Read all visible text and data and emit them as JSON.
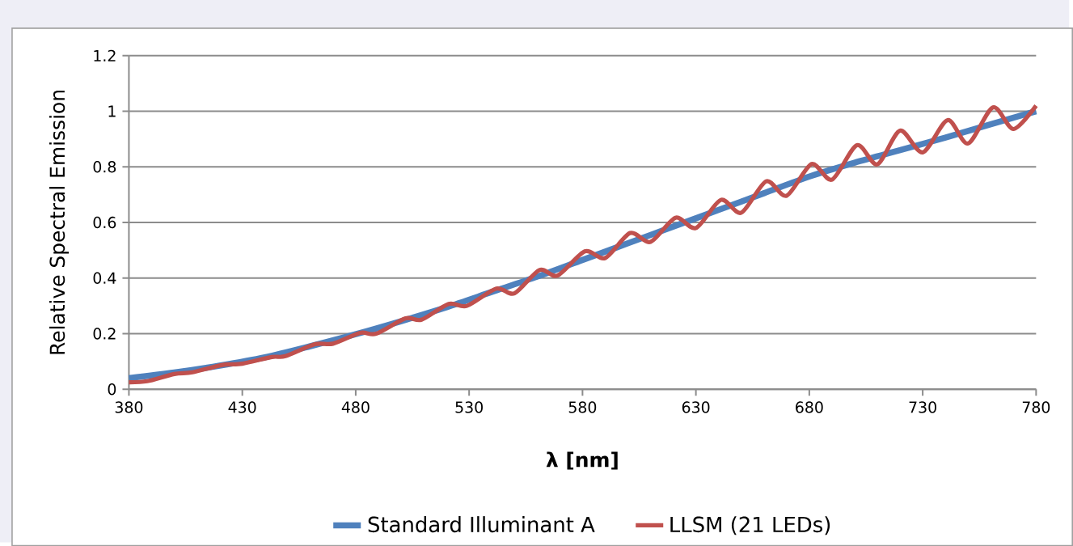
{
  "chart_data": {
    "type": "line",
    "xlabel": "λ [nm]",
    "ylabel": "Relative Spectral Emission",
    "xlim": [
      380,
      780
    ],
    "ylim": [
      0,
      1.2
    ],
    "xticks": [
      380,
      430,
      480,
      530,
      580,
      630,
      680,
      730,
      780
    ],
    "yticks": [
      0,
      0.2,
      0.4,
      0.6,
      0.8,
      1,
      1.2
    ],
    "grid": "y",
    "legend": "bottom",
    "series": [
      {
        "name": "Standard Illuminant A",
        "color": "#4f81bd",
        "x": [
          380,
          400,
          420,
          440,
          460,
          480,
          500,
          520,
          540,
          560,
          580,
          600,
          620,
          640,
          660,
          680,
          700,
          720,
          740,
          760,
          780
        ],
        "values": [
          0.04,
          0.06,
          0.085,
          0.115,
          0.155,
          0.198,
          0.245,
          0.295,
          0.35,
          0.405,
          0.465,
          0.525,
          0.585,
          0.645,
          0.705,
          0.765,
          0.815,
          0.86,
          0.905,
          0.953,
          1.0
        ]
      },
      {
        "name": "LLSM (21 LEDs)",
        "color": "#c0504d",
        "x": [
          380,
          388,
          400,
          408,
          421,
          430,
          443,
          449,
          462,
          470,
          482,
          489,
          502,
          509,
          521,
          529,
          542,
          550,
          561,
          569,
          581,
          590,
          601,
          610,
          621,
          630,
          641,
          650,
          661,
          670,
          681,
          690,
          701,
          710,
          720,
          730,
          741,
          750,
          761,
          770,
          780
        ],
        "values": [
          0.025,
          0.029,
          0.055,
          0.061,
          0.087,
          0.092,
          0.116,
          0.119,
          0.162,
          0.164,
          0.203,
          0.2,
          0.255,
          0.25,
          0.307,
          0.3,
          0.362,
          0.345,
          0.429,
          0.409,
          0.496,
          0.472,
          0.562,
          0.53,
          0.617,
          0.58,
          0.681,
          0.635,
          0.748,
          0.696,
          0.81,
          0.754,
          0.878,
          0.809,
          0.93,
          0.852,
          0.968,
          0.884,
          1.014,
          0.936,
          1.02
        ]
      }
    ]
  }
}
